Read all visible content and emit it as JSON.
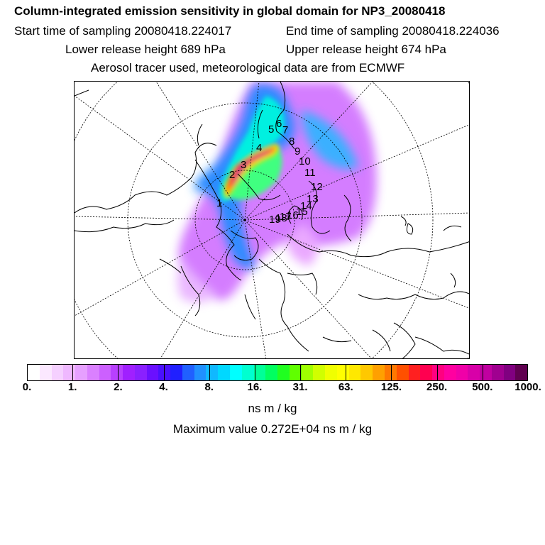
{
  "title": "Column-integrated emission sensitivity in global domain for NP3_20080418",
  "sampling_start": "Start time of sampling 20080418.224017",
  "sampling_end": "End time of sampling 20080418.224036",
  "release_lower": "Lower release height  689 hPa",
  "release_upper": "Upper release height  674 hPa",
  "info": "Aerosol tracer used, meteorological data are from ECMWF",
  "colorbar": {
    "colors": [
      "#ffffff",
      "#fbe8ff",
      "#f5d0ff",
      "#efb8ff",
      "#e6a0ff",
      "#da80ff",
      "#cc60ff",
      "#b840ff",
      "#a020ff",
      "#8a20ff",
      "#6a10ff",
      "#4a10ff",
      "#2020ff",
      "#2060ff",
      "#2090ff",
      "#10b8ff",
      "#00d8ff",
      "#00ffff",
      "#00ffd0",
      "#00ff98",
      "#00ff60",
      "#20ff20",
      "#60ff00",
      "#a0ff00",
      "#d0ff00",
      "#f0ff00",
      "#ffff00",
      "#ffe800",
      "#ffc800",
      "#ffa000",
      "#ff7800",
      "#ff5000",
      "#ff2020",
      "#ff0050",
      "#ff0080",
      "#ff00a0",
      "#f000a8",
      "#d800a8",
      "#c000a0",
      "#a00090",
      "#800080",
      "#600050"
    ],
    "tick_labels": [
      "0.",
      "1.",
      "2.",
      "4.",
      "8.",
      "16.",
      "31.",
      "63.",
      "125.",
      "250.",
      "500.",
      "1000."
    ],
    "unit": "ns m / kg"
  },
  "maximum": "Maximum value  0.272E+04 ns m / kg",
  "map": {
    "track_labels": [
      "1",
      "2",
      "3",
      "4",
      "5",
      "6",
      "7",
      "8",
      "9",
      "10",
      "11",
      "12",
      "13",
      "14",
      "15",
      "16",
      "17",
      "18",
      "19"
    ]
  }
}
